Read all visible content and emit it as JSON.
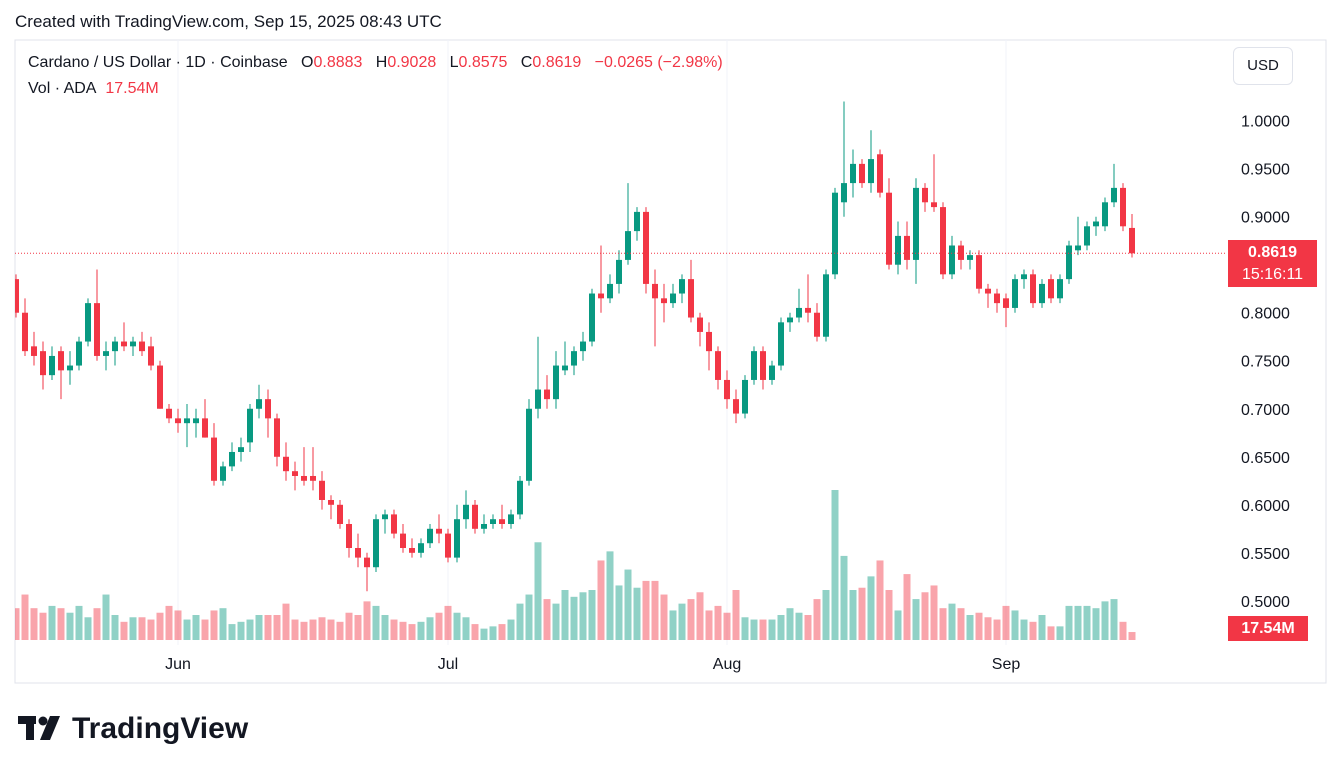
{
  "header": "Created with TradingView.com, Sep 15, 2025 08:43 UTC",
  "logo": "TradingView",
  "chart_data": {
    "type": "candlestick",
    "title": "Cardano / US Dollar · 1D · Coinbase",
    "ohlc_labels": [
      "O",
      "H",
      "L",
      "C"
    ],
    "change": "−0.0265 (−2.98%)",
    "currency": "USD",
    "countdown": "15:16:11",
    "up_color": "#089981",
    "down_color": "#f23645",
    "grid": true,
    "categories": [
      null,
      null,
      null,
      null,
      null,
      null,
      null,
      null,
      null,
      null,
      null,
      null,
      null,
      null,
      null,
      null,
      null,
      null,
      "Jun",
      null,
      null,
      null,
      null,
      null,
      null,
      null,
      null,
      null,
      null,
      null,
      null,
      null,
      null,
      null,
      null,
      null,
      null,
      null,
      null,
      null,
      null,
      null,
      null,
      null,
      null,
      null,
      null,
      null,
      "Jul",
      null,
      null,
      null,
      null,
      null,
      null,
      null,
      null,
      null,
      null,
      null,
      null,
      null,
      null,
      null,
      null,
      null,
      null,
      null,
      null,
      null,
      null,
      null,
      null,
      null,
      null,
      null,
      null,
      null,
      null,
      "Aug",
      null,
      null,
      null,
      null,
      null,
      null,
      null,
      null,
      null,
      null,
      null,
      null,
      null,
      null,
      null,
      null,
      null,
      null,
      null,
      null,
      null,
      null,
      null,
      null,
      null,
      null,
      null,
      null,
      null,
      null,
      "Sep",
      null,
      null,
      null,
      null,
      null,
      null,
      null,
      null,
      null,
      null,
      null,
      null,
      null,
      null
    ],
    "candles": [
      [
        0.835,
        0.84,
        0.795,
        0.8
      ],
      [
        0.8,
        0.815,
        0.755,
        0.76
      ],
      [
        0.765,
        0.78,
        0.745,
        0.755
      ],
      [
        0.76,
        0.77,
        0.72,
        0.735
      ],
      [
        0.735,
        0.765,
        0.73,
        0.755
      ],
      [
        0.76,
        0.765,
        0.71,
        0.74
      ],
      [
        0.74,
        0.76,
        0.725,
        0.745
      ],
      [
        0.745,
        0.775,
        0.74,
        0.77
      ],
      [
        0.77,
        0.815,
        0.765,
        0.81
      ],
      [
        0.81,
        0.845,
        0.75,
        0.755
      ],
      [
        0.755,
        0.77,
        0.74,
        0.76
      ],
      [
        0.76,
        0.775,
        0.745,
        0.77
      ],
      [
        0.77,
        0.79,
        0.76,
        0.765
      ],
      [
        0.765,
        0.775,
        0.755,
        0.77
      ],
      [
        0.77,
        0.78,
        0.755,
        0.76
      ],
      [
        0.765,
        0.775,
        0.74,
        0.745
      ],
      [
        0.745,
        0.75,
        0.7,
        0.7
      ],
      [
        0.7,
        0.705,
        0.685,
        0.69
      ],
      [
        0.69,
        0.7,
        0.675,
        0.685
      ],
      [
        0.685,
        0.705,
        0.66,
        0.69
      ],
      [
        0.685,
        0.7,
        0.67,
        0.69
      ],
      [
        0.69,
        0.71,
        0.67,
        0.67
      ],
      [
        0.67,
        0.685,
        0.62,
        0.625
      ],
      [
        0.625,
        0.645,
        0.62,
        0.64
      ],
      [
        0.64,
        0.665,
        0.635,
        0.655
      ],
      [
        0.655,
        0.67,
        0.645,
        0.66
      ],
      [
        0.665,
        0.705,
        0.655,
        0.7
      ],
      [
        0.7,
        0.725,
        0.69,
        0.71
      ],
      [
        0.71,
        0.72,
        0.67,
        0.69
      ],
      [
        0.69,
        0.695,
        0.64,
        0.65
      ],
      [
        0.65,
        0.665,
        0.625,
        0.635
      ],
      [
        0.635,
        0.645,
        0.615,
        0.63
      ],
      [
        0.63,
        0.66,
        0.62,
        0.625
      ],
      [
        0.63,
        0.66,
        0.615,
        0.625
      ],
      [
        0.625,
        0.635,
        0.595,
        0.605
      ],
      [
        0.605,
        0.61,
        0.585,
        0.6
      ],
      [
        0.6,
        0.605,
        0.575,
        0.58
      ],
      [
        0.58,
        0.585,
        0.545,
        0.555
      ],
      [
        0.555,
        0.57,
        0.535,
        0.545
      ],
      [
        0.545,
        0.55,
        0.51,
        0.535
      ],
      [
        0.535,
        0.59,
        0.53,
        0.585
      ],
      [
        0.585,
        0.595,
        0.57,
        0.59
      ],
      [
        0.59,
        0.595,
        0.565,
        0.57
      ],
      [
        0.57,
        0.58,
        0.55,
        0.555
      ],
      [
        0.555,
        0.565,
        0.545,
        0.55
      ],
      [
        0.55,
        0.565,
        0.545,
        0.56
      ],
      [
        0.56,
        0.58,
        0.555,
        0.575
      ],
      [
        0.575,
        0.59,
        0.56,
        0.57
      ],
      [
        0.57,
        0.575,
        0.54,
        0.545
      ],
      [
        0.545,
        0.6,
        0.54,
        0.585
      ],
      [
        0.585,
        0.615,
        0.575,
        0.6
      ],
      [
        0.6,
        0.605,
        0.57,
        0.575
      ],
      [
        0.575,
        0.59,
        0.57,
        0.58
      ],
      [
        0.58,
        0.59,
        0.575,
        0.585
      ],
      [
        0.585,
        0.6,
        0.575,
        0.58
      ],
      [
        0.58,
        0.595,
        0.575,
        0.59
      ],
      [
        0.59,
        0.63,
        0.585,
        0.625
      ],
      [
        0.625,
        0.71,
        0.62,
        0.7
      ],
      [
        0.7,
        0.775,
        0.69,
        0.72
      ],
      [
        0.72,
        0.735,
        0.7,
        0.71
      ],
      [
        0.71,
        0.76,
        0.7,
        0.745
      ],
      [
        0.74,
        0.77,
        0.735,
        0.745
      ],
      [
        0.745,
        0.765,
        0.735,
        0.76
      ],
      [
        0.76,
        0.78,
        0.75,
        0.77
      ],
      [
        0.77,
        0.825,
        0.765,
        0.82
      ],
      [
        0.82,
        0.87,
        0.8,
        0.815
      ],
      [
        0.815,
        0.84,
        0.81,
        0.83
      ],
      [
        0.83,
        0.865,
        0.82,
        0.855
      ],
      [
        0.855,
        0.935,
        0.85,
        0.885
      ],
      [
        0.885,
        0.91,
        0.875,
        0.905
      ],
      [
        0.905,
        0.91,
        0.82,
        0.83
      ],
      [
        0.83,
        0.845,
        0.765,
        0.815
      ],
      [
        0.815,
        0.83,
        0.79,
        0.81
      ],
      [
        0.81,
        0.83,
        0.805,
        0.82
      ],
      [
        0.82,
        0.84,
        0.81,
        0.835
      ],
      [
        0.835,
        0.855,
        0.79,
        0.795
      ],
      [
        0.795,
        0.8,
        0.765,
        0.78
      ],
      [
        0.78,
        0.79,
        0.74,
        0.76
      ],
      [
        0.76,
        0.765,
        0.72,
        0.73
      ],
      [
        0.73,
        0.74,
        0.7,
        0.71
      ],
      [
        0.71,
        0.72,
        0.685,
        0.695
      ],
      [
        0.695,
        0.735,
        0.69,
        0.73
      ],
      [
        0.73,
        0.765,
        0.725,
        0.76
      ],
      [
        0.76,
        0.765,
        0.72,
        0.73
      ],
      [
        0.73,
        0.75,
        0.725,
        0.745
      ],
      [
        0.745,
        0.795,
        0.74,
        0.79
      ],
      [
        0.79,
        0.8,
        0.78,
        0.795
      ],
      [
        0.795,
        0.825,
        0.79,
        0.805
      ],
      [
        0.805,
        0.84,
        0.79,
        0.8
      ],
      [
        0.8,
        0.81,
        0.77,
        0.775
      ],
      [
        0.775,
        0.845,
        0.77,
        0.84
      ],
      [
        0.84,
        0.93,
        0.835,
        0.925
      ],
      [
        0.915,
        1.02,
        0.9,
        0.935
      ],
      [
        0.935,
        0.97,
        0.92,
        0.955
      ],
      [
        0.955,
        0.96,
        0.93,
        0.935
      ],
      [
        0.935,
        0.99,
        0.925,
        0.96
      ],
      [
        0.965,
        0.97,
        0.92,
        0.925
      ],
      [
        0.925,
        0.94,
        0.845,
        0.85
      ],
      [
        0.85,
        0.895,
        0.84,
        0.88
      ],
      [
        0.88,
        0.895,
        0.845,
        0.855
      ],
      [
        0.855,
        0.94,
        0.83,
        0.93
      ],
      [
        0.93,
        0.935,
        0.905,
        0.915
      ],
      [
        0.915,
        0.965,
        0.905,
        0.91
      ],
      [
        0.91,
        0.915,
        0.835,
        0.84
      ],
      [
        0.84,
        0.88,
        0.835,
        0.87
      ],
      [
        0.87,
        0.875,
        0.845,
        0.855
      ],
      [
        0.855,
        0.865,
        0.845,
        0.86
      ],
      [
        0.86,
        0.865,
        0.82,
        0.825
      ],
      [
        0.825,
        0.83,
        0.805,
        0.82
      ],
      [
        0.82,
        0.825,
        0.8,
        0.81
      ],
      [
        0.815,
        0.82,
        0.785,
        0.805
      ],
      [
        0.805,
        0.84,
        0.8,
        0.835
      ],
      [
        0.835,
        0.845,
        0.825,
        0.84
      ],
      [
        0.84,
        0.845,
        0.805,
        0.81
      ],
      [
        0.81,
        0.835,
        0.805,
        0.83
      ],
      [
        0.835,
        0.84,
        0.81,
        0.815
      ],
      [
        0.815,
        0.84,
        0.81,
        0.835
      ],
      [
        0.835,
        0.875,
        0.83,
        0.87
      ],
      [
        0.865,
        0.9,
        0.86,
        0.87
      ],
      [
        0.87,
        0.895,
        0.865,
        0.89
      ],
      [
        0.89,
        0.9,
        0.88,
        0.895
      ],
      [
        0.89,
        0.92,
        0.885,
        0.915
      ],
      [
        0.915,
        0.955,
        0.91,
        0.93
      ],
      [
        0.93,
        0.935,
        0.885,
        0.89
      ],
      [
        0.8883,
        0.9028,
        0.8575,
        0.8619
      ]
    ],
    "volume": {
      "name": "Vol · ADA",
      "value_label": "17.54M",
      "values": [
        70,
        100,
        70,
        60,
        75,
        70,
        60,
        75,
        50,
        70,
        100,
        55,
        40,
        50,
        50,
        45,
        60,
        75,
        65,
        45,
        55,
        45,
        65,
        70,
        35,
        40,
        45,
        55,
        55,
        55,
        80,
        45,
        40,
        45,
        50,
        45,
        40,
        60,
        55,
        85,
        75,
        55,
        45,
        40,
        35,
        40,
        50,
        60,
        75,
        60,
        50,
        35,
        25,
        30,
        35,
        45,
        80,
        100,
        215,
        90,
        80,
        110,
        95,
        105,
        110,
        175,
        195,
        120,
        155,
        115,
        130,
        130,
        100,
        65,
        80,
        90,
        105,
        65,
        75,
        60,
        110,
        50,
        45,
        45,
        45,
        55,
        70,
        60,
        55,
        90,
        110,
        330,
        185,
        110,
        115,
        140,
        175,
        110,
        65,
        145,
        90,
        105,
        120,
        70,
        80,
        70,
        55,
        60,
        50,
        45,
        75,
        65,
        45,
        40,
        55,
        30,
        30,
        75,
        75,
        75,
        70,
        85,
        90,
        40,
        17.54
      ]
    },
    "ylim": [
      0.454,
      1.084
    ],
    "yticks": [
      {
        "value": 0.5,
        "label": "0.5000"
      },
      {
        "value": 0.55,
        "label": "0.5500"
      },
      {
        "value": 0.6,
        "label": "0.6000"
      },
      {
        "value": 0.65,
        "label": "0.6500"
      },
      {
        "value": 0.7,
        "label": "0.7000"
      },
      {
        "value": 0.75,
        "label": "0.7500"
      },
      {
        "value": 0.8,
        "label": "0.8000"
      },
      {
        "value": 0.85,
        "label": "0.8500"
      },
      {
        "value": 0.9,
        "label": "0.9000"
      },
      {
        "value": 0.95,
        "label": "0.9500"
      },
      {
        "value": 1.0,
        "label": "1.0000"
      }
    ]
  }
}
